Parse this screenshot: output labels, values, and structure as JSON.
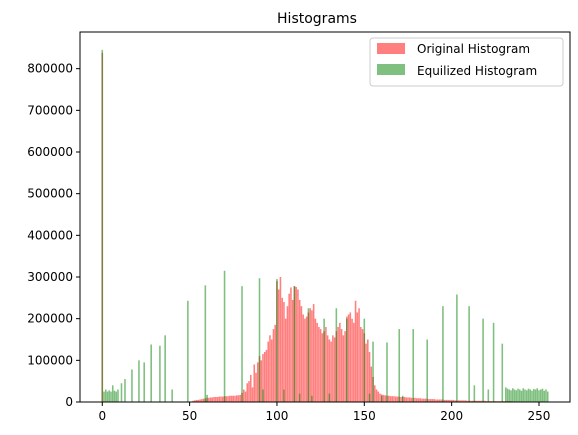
{
  "chart_data": {
    "type": "bar",
    "title": "Histograms",
    "xlabel": "",
    "ylabel": "",
    "xlim": [
      -12.75,
      267.75
    ],
    "ylim": [
      0,
      888000
    ],
    "xticks": [
      0,
      50,
      100,
      150,
      200,
      250
    ],
    "yticks": [
      0,
      100000,
      200000,
      300000,
      400000,
      500000,
      600000,
      700000,
      800000
    ],
    "legend_position": "top-right",
    "grid": false,
    "series": [
      {
        "name": "Original Histogram",
        "color": "#ff0000",
        "alpha": 0.5,
        "points": [
          [
            0,
            838000
          ],
          [
            52,
            3000
          ],
          [
            53,
            4000
          ],
          [
            54,
            5000
          ],
          [
            55,
            5000
          ],
          [
            56,
            6000
          ],
          [
            57,
            7000
          ],
          [
            58,
            8000
          ],
          [
            59,
            9000
          ],
          [
            60,
            10000
          ],
          [
            61,
            10000
          ],
          [
            62,
            11000
          ],
          [
            63,
            11000
          ],
          [
            64,
            12000
          ],
          [
            65,
            12000
          ],
          [
            66,
            12000
          ],
          [
            67,
            13000
          ],
          [
            68,
            13000
          ],
          [
            69,
            13000
          ],
          [
            70,
            14000
          ],
          [
            71,
            14000
          ],
          [
            72,
            14000
          ],
          [
            73,
            15000
          ],
          [
            74,
            15000
          ],
          [
            75,
            15000
          ],
          [
            76,
            15000
          ],
          [
            77,
            16000
          ],
          [
            78,
            16000
          ],
          [
            79,
            17000
          ],
          [
            80,
            22000
          ],
          [
            81,
            30000
          ],
          [
            82,
            25000
          ],
          [
            83,
            45000
          ],
          [
            84,
            50000
          ],
          [
            85,
            65000
          ],
          [
            86,
            35000
          ],
          [
            87,
            90000
          ],
          [
            88,
            70000
          ],
          [
            89,
            95000
          ],
          [
            90,
            110000
          ],
          [
            91,
            100000
          ],
          [
            92,
            115000
          ],
          [
            93,
            120000
          ],
          [
            94,
            125000
          ],
          [
            95,
            145000
          ],
          [
            96,
            160000
          ],
          [
            97,
            150000
          ],
          [
            98,
            175000
          ],
          [
            99,
            185000
          ],
          [
            100,
            290000
          ],
          [
            101,
            270000
          ],
          [
            102,
            300000
          ],
          [
            103,
            250000
          ],
          [
            104,
            240000
          ],
          [
            105,
            200000
          ],
          [
            106,
            230000
          ],
          [
            107,
            260000
          ],
          [
            108,
            275000
          ],
          [
            109,
            245000
          ],
          [
            110,
            278000
          ],
          [
            111,
            276000
          ],
          [
            112,
            270000
          ],
          [
            113,
            245000
          ],
          [
            114,
            230000
          ],
          [
            115,
            210000
          ],
          [
            116,
            200000
          ],
          [
            117,
            205000
          ],
          [
            118,
            215000
          ],
          [
            119,
            225000
          ],
          [
            120,
            220000
          ],
          [
            121,
            235000
          ],
          [
            122,
            200000
          ],
          [
            123,
            190000
          ],
          [
            124,
            180000
          ],
          [
            125,
            175000
          ],
          [
            126,
            165000
          ],
          [
            127,
            170000
          ],
          [
            128,
            180000
          ],
          [
            129,
            160000
          ],
          [
            130,
            150000
          ],
          [
            131,
            145000
          ],
          [
            132,
            160000
          ],
          [
            133,
            155000
          ],
          [
            134,
            170000
          ],
          [
            135,
            180000
          ],
          [
            136,
            190000
          ],
          [
            137,
            175000
          ],
          [
            138,
            160000
          ],
          [
            139,
            170000
          ],
          [
            140,
            205000
          ],
          [
            141,
            210000
          ],
          [
            142,
            215000
          ],
          [
            143,
            200000
          ],
          [
            144,
            190000
          ],
          [
            145,
            243000
          ],
          [
            146,
            215000
          ],
          [
            147,
            225000
          ],
          [
            148,
            180000
          ],
          [
            149,
            175000
          ],
          [
            150,
            165000
          ],
          [
            151,
            140000
          ],
          [
            152,
            150000
          ],
          [
            153,
            120000
          ],
          [
            154,
            85000
          ],
          [
            155,
            60000
          ],
          [
            156,
            40000
          ],
          [
            157,
            30000
          ],
          [
            158,
            25000
          ],
          [
            159,
            20000
          ],
          [
            160,
            18000
          ],
          [
            161,
            17000
          ],
          [
            162,
            16000
          ],
          [
            163,
            15000
          ],
          [
            164,
            15000
          ],
          [
            165,
            14000
          ],
          [
            166,
            14000
          ],
          [
            167,
            14000
          ],
          [
            168,
            13000
          ],
          [
            169,
            13000
          ],
          [
            170,
            13000
          ],
          [
            171,
            12000
          ],
          [
            172,
            12000
          ],
          [
            173,
            12000
          ],
          [
            174,
            11000
          ],
          [
            175,
            11000
          ],
          [
            176,
            11000
          ],
          [
            177,
            10000
          ],
          [
            178,
            10000
          ],
          [
            179,
            10000
          ],
          [
            180,
            9000
          ],
          [
            181,
            9000
          ],
          [
            182,
            9000
          ],
          [
            183,
            8000
          ],
          [
            184,
            8000
          ],
          [
            185,
            8000
          ],
          [
            186,
            8000
          ],
          [
            187,
            7000
          ],
          [
            188,
            7000
          ],
          [
            189,
            7000
          ],
          [
            190,
            7000
          ],
          [
            191,
            6000
          ],
          [
            192,
            6000
          ],
          [
            193,
            6000
          ],
          [
            194,
            6000
          ],
          [
            195,
            6000
          ],
          [
            196,
            5000
          ],
          [
            197,
            5000
          ],
          [
            198,
            5000
          ],
          [
            199,
            5000
          ],
          [
            200,
            5000
          ],
          [
            201,
            5000
          ],
          [
            202,
            4000
          ],
          [
            203,
            4000
          ],
          [
            204,
            4000
          ],
          [
            205,
            4000
          ],
          [
            206,
            4000
          ],
          [
            207,
            4000
          ],
          [
            208,
            4000
          ],
          [
            209,
            3000
          ],
          [
            210,
            3000
          ],
          [
            211,
            3000
          ],
          [
            212,
            3000
          ],
          [
            213,
            3000
          ],
          [
            214,
            3000
          ],
          [
            215,
            3000
          ],
          [
            216,
            3000
          ],
          [
            217,
            3000
          ],
          [
            218,
            3000
          ],
          [
            219,
            3000
          ],
          [
            220,
            2000
          ],
          [
            221,
            2000
          ],
          [
            222,
            2000
          ],
          [
            223,
            2000
          ],
          [
            224,
            2000
          ],
          [
            225,
            2000
          ],
          [
            226,
            2000
          ],
          [
            227,
            2000
          ],
          [
            228,
            2000
          ],
          [
            229,
            2000
          ],
          [
            230,
            2000
          ],
          [
            231,
            2000
          ],
          [
            232,
            2000
          ],
          [
            233,
            2000
          ],
          [
            234,
            2000
          ],
          [
            235,
            1000
          ],
          [
            236,
            1000
          ],
          [
            237,
            1000
          ],
          [
            238,
            1000
          ],
          [
            239,
            1000
          ]
        ]
      },
      {
        "name": "Equilized Histogram",
        "color": "#008000",
        "alpha": 0.5,
        "points": [
          [
            0,
            845000
          ],
          [
            1,
            25000
          ],
          [
            2,
            30000
          ],
          [
            3,
            25000
          ],
          [
            4,
            28000
          ],
          [
            5,
            25000
          ],
          [
            6,
            40000
          ],
          [
            7,
            27000
          ],
          [
            8,
            25000
          ],
          [
            9,
            30000
          ],
          [
            11,
            45000
          ],
          [
            13,
            55000
          ],
          [
            17,
            78000
          ],
          [
            21,
            100000
          ],
          [
            24,
            95000
          ],
          [
            28,
            138000
          ],
          [
            33,
            135000
          ],
          [
            36,
            160000
          ],
          [
            40,
            30000
          ],
          [
            49,
            243000
          ],
          [
            59,
            280000
          ],
          [
            60,
            17000
          ],
          [
            70,
            315000
          ],
          [
            80,
            278000
          ],
          [
            90,
            297000
          ],
          [
            92,
            30000
          ],
          [
            100,
            295000
          ],
          [
            104,
            30000
          ],
          [
            110,
            278000
          ],
          [
            113,
            20000
          ],
          [
            118,
            225000
          ],
          [
            120,
            15000
          ],
          [
            127,
            200000
          ],
          [
            130,
            20000
          ],
          [
            134,
            225000
          ],
          [
            140,
            200000
          ],
          [
            150,
            200000
          ],
          [
            153,
            20000
          ],
          [
            155,
            145000
          ],
          [
            160,
            15000
          ],
          [
            163,
            143000
          ],
          [
            170,
            175000
          ],
          [
            172,
            15000
          ],
          [
            178,
            175000
          ],
          [
            186,
            150000
          ],
          [
            195,
            230000
          ],
          [
            203,
            258000
          ],
          [
            210,
            230000
          ],
          [
            213,
            40000
          ],
          [
            218,
            200000
          ],
          [
            221,
            30000
          ],
          [
            224,
            190000
          ],
          [
            229,
            140000
          ],
          [
            231,
            35000
          ],
          [
            232,
            32000
          ],
          [
            233,
            30000
          ],
          [
            234,
            28000
          ],
          [
            235,
            33000
          ],
          [
            236,
            30000
          ],
          [
            237,
            28000
          ],
          [
            238,
            32000
          ],
          [
            239,
            30000
          ],
          [
            240,
            27000
          ],
          [
            241,
            33000
          ],
          [
            242,
            30000
          ],
          [
            243,
            28000
          ],
          [
            244,
            32000
          ],
          [
            245,
            30000
          ],
          [
            246,
            27000
          ],
          [
            247,
            31000
          ],
          [
            248,
            30000
          ],
          [
            249,
            33000
          ],
          [
            250,
            28000
          ],
          [
            251,
            30000
          ],
          [
            252,
            32000
          ],
          [
            253,
            27000
          ],
          [
            254,
            30000
          ],
          [
            255,
            25000
          ]
        ]
      }
    ]
  }
}
